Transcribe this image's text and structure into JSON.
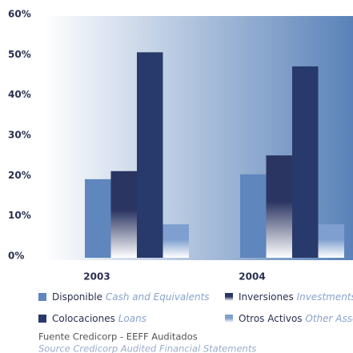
{
  "chart_data": {
    "type": "bar",
    "categories": [
      "2003",
      "2004"
    ],
    "series": [
      {
        "name": "Disponible",
        "name_en": "Cash and Equivalents",
        "color": "#5f86bd",
        "gradient": false,
        "values": [
          19.5,
          20.7
        ]
      },
      {
        "name": "Inversiones",
        "name_en": "Investments",
        "color": "#2b3562",
        "gradient": true,
        "values": [
          21.5,
          25.4
        ]
      },
      {
        "name": "Colocaciones",
        "name_en": "Loans",
        "color": "#283a6b",
        "gradient": false,
        "values": [
          51,
          47.5
        ]
      },
      {
        "name": "Otros Activos",
        "name_en": "Other Assets",
        "color": "#7e9fcf",
        "gradient": true,
        "values": [
          8.3,
          8.3
        ]
      }
    ],
    "ylim": [
      0,
      60
    ],
    "yticks": [
      {
        "value": 0,
        "label": "0%"
      },
      {
        "value": 10,
        "label": "10%"
      },
      {
        "value": 20,
        "label": "20%"
      },
      {
        "value": 30,
        "label": "30%"
      },
      {
        "value": 40,
        "label": "40%"
      },
      {
        "value": 50,
        "label": "50%"
      },
      {
        "value": 60,
        "label": "60%"
      }
    ],
    "source": "Fuente Credicorp - EEFF Auditados",
    "source_en": "Source Credicorp Audited Financial Statements"
  }
}
